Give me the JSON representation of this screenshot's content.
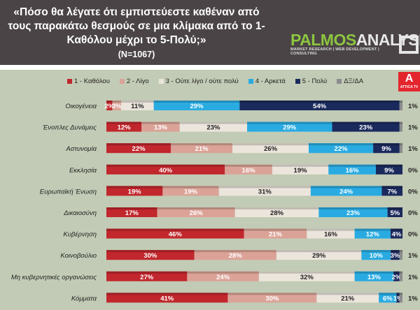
{
  "header": {
    "title": "«Πόσο θα λέγατε ότι εμπιστεύεστε καθέναν από τους παρακάτω θεσμούς σε μια κλίμακα από το 1-Καθόλου μέχρι το 5-Πολύ;»",
    "sample": "(N=1067)"
  },
  "logo": {
    "part1": "PALMOS",
    "part2": "ANALYSIS",
    "tagline": "MARKET RESEARCH | WEB DEVELOPMENT | CONSULTING"
  },
  "channel_logo": {
    "letter": "A",
    "name": "ATTICA TV"
  },
  "chart_data": {
    "type": "bar",
    "orientation": "horizontal",
    "stacked": true,
    "title": "«Πόσο θα λέγατε ότι εμπιστεύεστε καθέναν από τους παρακάτω θεσμούς σε μια κλίμακα από το 1-Καθόλου μέχρι το 5-Πολύ;» (N=1067)",
    "legend_position": "top",
    "categories": [
      "Οικογένεια",
      "Ένοπλες Δυνάμεις",
      "Αστυνομία",
      "Εκκλησία",
      "Ευρωπαϊκή Ένωση",
      "Δικαιοσύνη",
      "Κυβέρνηση",
      "Κοινοβούλιο",
      "Μη κυβερνητικές οργανώσεις",
      "Κόμματα"
    ],
    "series": [
      {
        "name": "1 - Καθόλου",
        "color": "#c1272d",
        "label_color": "#ffffff",
        "values": [
          2,
          12,
          22,
          40,
          19,
          17,
          46,
          30,
          27,
          41
        ]
      },
      {
        "name": "2 - Λίγο",
        "color": "#dba397",
        "label_color": "#ffffff",
        "values": [
          3,
          13,
          21,
          16,
          19,
          26,
          21,
          28,
          24,
          30
        ]
      },
      {
        "name": "3 - Ούτε λίγο / ούτε πολύ",
        "color": "#ebe5dc",
        "label_color": "#222222",
        "values": [
          11,
          23,
          26,
          19,
          31,
          28,
          16,
          29,
          32,
          21
        ]
      },
      {
        "name": "4 - Αρκετά",
        "color": "#29abe2",
        "label_color": "#ffffff",
        "values": [
          29,
          29,
          22,
          16,
          24,
          23,
          12,
          10,
          13,
          6
        ]
      },
      {
        "name": "5 - Πολύ",
        "color": "#1b2a5c",
        "label_color": "#ffffff",
        "values": [
          54,
          23,
          9,
          9,
          7,
          5,
          4,
          3,
          2,
          1
        ]
      },
      {
        "name": "ΔΞ/ΔΑ",
        "color": "#8a8c8e",
        "label_color": "#222222",
        "values": [
          1,
          1,
          1,
          0,
          0,
          0,
          0,
          1,
          1,
          1
        ]
      }
    ],
    "xlim": [
      0,
      100
    ]
  }
}
